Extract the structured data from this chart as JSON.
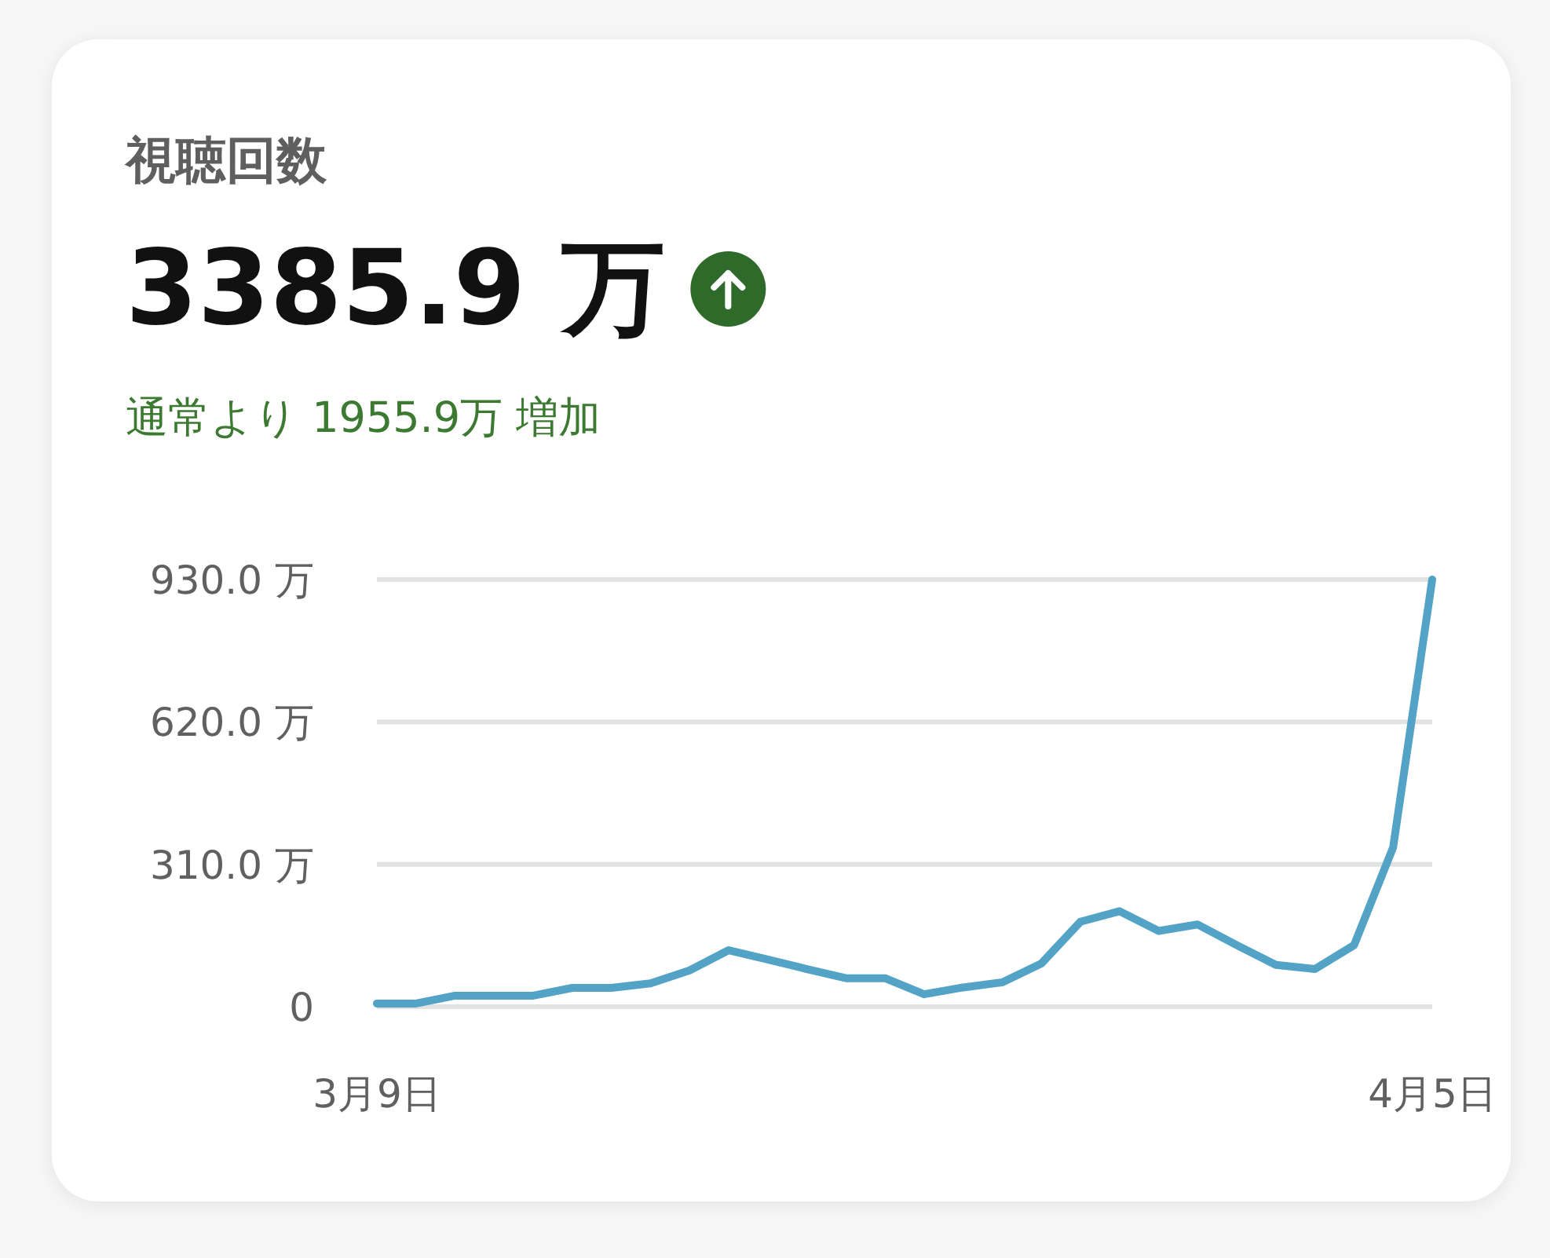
{
  "chart_data": {
    "type": "line",
    "title": "視聴回数",
    "annotations": [
      "3385.9 万",
      "通常より 1955.9万 増加"
    ],
    "x": [
      "--03-09",
      "--03-10",
      "--03-11",
      "--03-12",
      "--03-13",
      "--03-14",
      "--03-15",
      "--03-16",
      "--03-17",
      "--03-18",
      "--03-19",
      "--03-20",
      "--03-21",
      "--03-22",
      "--03-23",
      "--03-24",
      "--03-25",
      "--03-26",
      "--03-27",
      "--03-28",
      "--03-29",
      "--03-30",
      "--03-31",
      "--04-01",
      "--04-02",
      "--04-03",
      "--04-04",
      "--04-05"
    ],
    "series": [
      {
        "color": "#52a3c6",
        "values": [
          7,
          7,
          24,
          24,
          24,
          41,
          41,
          51,
          79,
          123,
          103,
          82,
          62,
          62,
          27,
          42,
          53,
          94,
          185,
          208,
          165,
          179,
          134,
          91,
          82,
          134,
          347,
          930
        ]
      }
    ],
    "xlim": [
      "--03-09",
      "--04-05"
    ],
    "xticks": [
      {
        "value": "--03-09",
        "label": "3月9日"
      },
      {
        "value": "--04-05",
        "label": "4月5日"
      }
    ],
    "ylim": [
      0,
      930
    ],
    "yticks": [
      {
        "value": 0,
        "label": "0"
      },
      {
        "value": 310,
        "label": "310.0 万"
      },
      {
        "value": 620,
        "label": "620.0 万"
      },
      {
        "value": 930,
        "label": "930.0 万"
      }
    ],
    "grid": "y",
    "line_style": "solid"
  }
}
